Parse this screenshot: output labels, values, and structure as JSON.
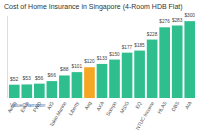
{
  "chart_data": {
    "type": "bar",
    "title": "Cost of Home Insurance in Singapore (4-Room HDB Flat)",
    "categories": [
      "Aviva",
      "Etiqa",
      "FWD",
      "AIG",
      "Tokio Marine",
      "Liberty",
      "Avg",
      "AXA",
      "Sompo",
      "MSIG",
      "EQ",
      "NTUC Income",
      "HLAS",
      "DBS",
      "AIA"
    ],
    "values": [
      52,
      53,
      56,
      66,
      88,
      101,
      120,
      133,
      150,
      177,
      185,
      228,
      276,
      283,
      300
    ],
    "value_labels": [
      "$52",
      "$53",
      "$56",
      "$66",
      "$88",
      "$101",
      "$120",
      "$133",
      "$150",
      "$177",
      "$185",
      "$228",
      "$276",
      "$283",
      "$300"
    ],
    "colors": [
      "#2fbf8f",
      "#2fbf8f",
      "#2fbf8f",
      "#2fbf8f",
      "#2fbf8f",
      "#2fbf8f",
      "#f5a623",
      "#2fbf8f",
      "#2fbf8f",
      "#2fbf8f",
      "#2fbf8f",
      "#2fbf8f",
      "#2fbf8f",
      "#2fbf8f",
      "#2fbf8f"
    ],
    "ylim": [
      0,
      320
    ],
    "grid": false,
    "data_labels": true,
    "tick_labels": "x",
    "annotations": [
      "ValueChampion"
    ]
  }
}
